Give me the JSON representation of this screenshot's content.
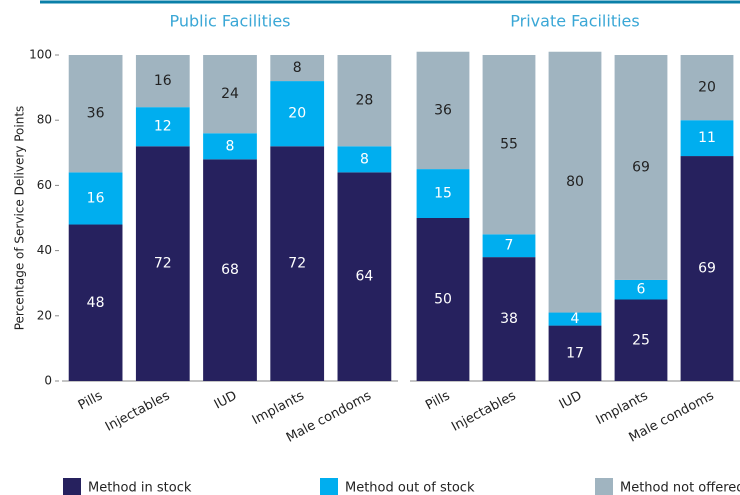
{
  "chart_data": {
    "type": "bar",
    "stacked": true,
    "ylabel": "Percentage of Service Delivery Points",
    "ylim": [
      0,
      100
    ],
    "yticks": [
      0,
      20,
      40,
      60,
      80,
      100
    ],
    "series": [
      {
        "name": "Method in stock",
        "color": "#26215e"
      },
      {
        "name": "Method out of stock",
        "color": "#00aeef"
      },
      {
        "name": "Method not offered",
        "color": "#a0b4c0"
      }
    ],
    "panels": [
      {
        "title": "Public Facilities",
        "categories": [
          "Pills",
          "Injectables",
          "IUD",
          "Implants",
          "Male condoms"
        ],
        "series": [
          {
            "values": [
              48,
              72,
              68,
              72,
              64
            ]
          },
          {
            "values": [
              16,
              12,
              8,
              20,
              8
            ]
          },
          {
            "values": [
              36,
              16,
              24,
              8,
              28
            ]
          }
        ]
      },
      {
        "title": "Private Facilities",
        "categories": [
          "Pills",
          "Injectables",
          "IUD",
          "Implants",
          "Male condoms"
        ],
        "series": [
          {
            "values": [
              50,
              38,
              17,
              25,
              69
            ]
          },
          {
            "values": [
              15,
              7,
              4,
              6,
              11
            ]
          },
          {
            "values": [
              36,
              55,
              80,
              69,
              20
            ]
          }
        ]
      }
    ]
  }
}
